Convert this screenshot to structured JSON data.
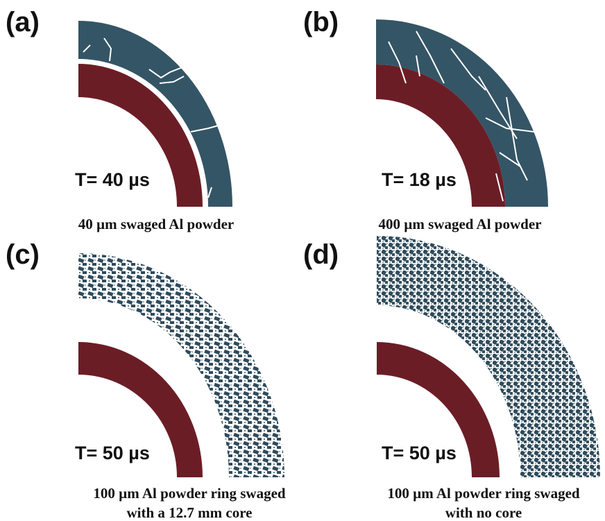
{
  "panels": [
    {
      "label": "(a)",
      "time": "T= 40 µs",
      "caption": [
        "40 µm swaged Al powder"
      ]
    },
    {
      "label": "(b)",
      "time": "T= 18 µs",
      "caption": [
        "400 µm swaged Al powder"
      ]
    },
    {
      "label": "(c)",
      "time": "T= 50 µs",
      "caption": [
        "100 µm Al powder ring swaged",
        "with a 12.7 mm core"
      ]
    },
    {
      "label": "(d)",
      "time": "T= 50 µs",
      "caption": [
        "100 µm Al powder ring swaged",
        "with no core"
      ]
    }
  ]
}
